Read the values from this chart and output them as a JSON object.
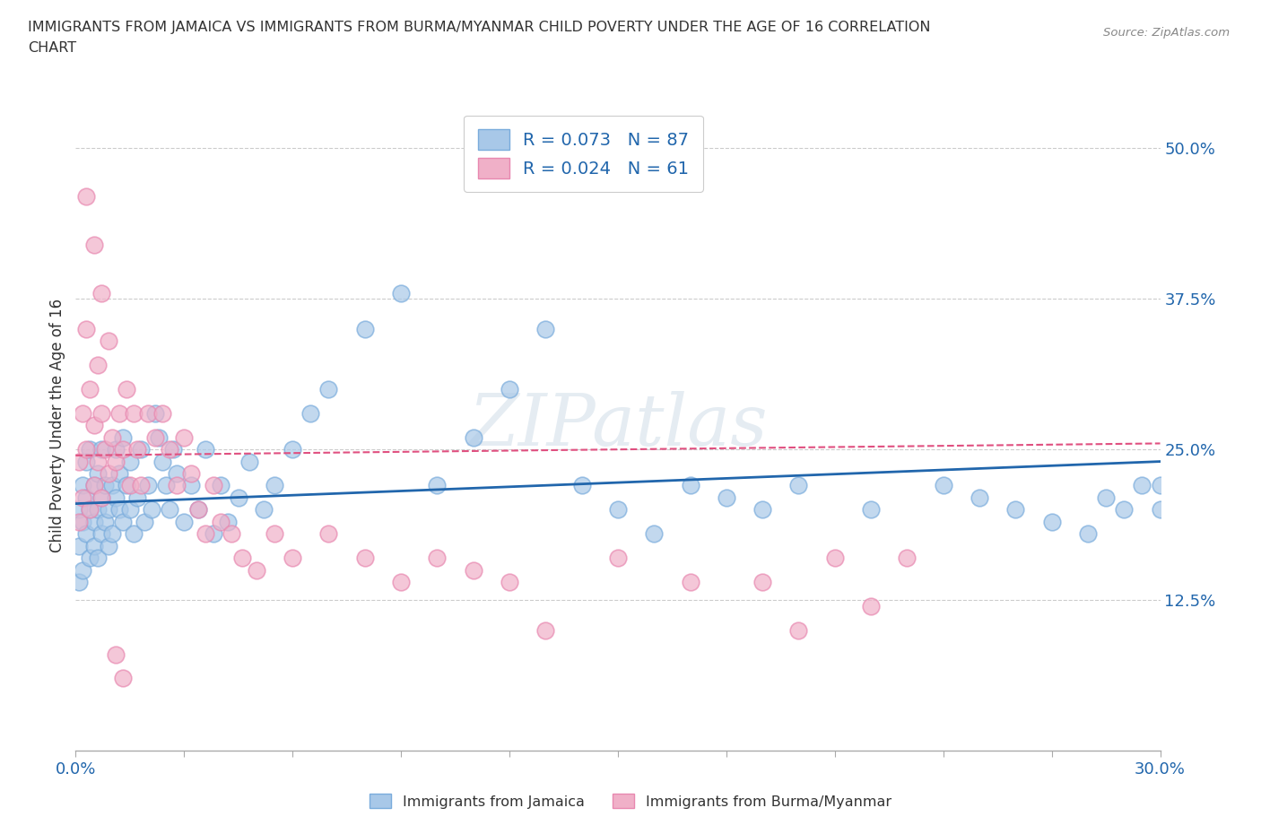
{
  "title_line1": "IMMIGRANTS FROM JAMAICA VS IMMIGRANTS FROM BURMA/MYANMAR CHILD POVERTY UNDER THE AGE OF 16 CORRELATION",
  "title_line2": "CHART",
  "source": "Source: ZipAtlas.com",
  "ylabel": "Child Poverty Under the Age of 16",
  "xlim": [
    0.0,
    0.3
  ],
  "ylim": [
    0.0,
    0.54
  ],
  "yticks": [
    0.0,
    0.125,
    0.25,
    0.375,
    0.5
  ],
  "ytick_labels": [
    "",
    "12.5%",
    "25.0%",
    "37.5%",
    "50.0%"
  ],
  "xticks": [
    0.0,
    0.03,
    0.06,
    0.09,
    0.12,
    0.15,
    0.18,
    0.21,
    0.24,
    0.27,
    0.3
  ],
  "hlines": [
    0.125,
    0.25,
    0.375,
    0.5
  ],
  "jamaica_color": "#a8c8e8",
  "burma_color": "#f0b0c8",
  "jamaica_edge_color": "#7aacdc",
  "burma_edge_color": "#e888b0",
  "jamaica_line_color": "#2166ac",
  "burma_line_color": "#e05080",
  "R_jamaica": 0.073,
  "N_jamaica": 87,
  "R_burma": 0.024,
  "N_burma": 61,
  "legend_label_jamaica": "Immigrants from Jamaica",
  "legend_label_burma": "Immigrants from Burma/Myanmar",
  "watermark": "ZIPatlas",
  "background_color": "#ffffff",
  "jamaica_x": [
    0.001,
    0.001,
    0.001,
    0.002,
    0.002,
    0.002,
    0.003,
    0.003,
    0.003,
    0.004,
    0.004,
    0.004,
    0.005,
    0.005,
    0.005,
    0.006,
    0.006,
    0.006,
    0.007,
    0.007,
    0.007,
    0.008,
    0.008,
    0.009,
    0.009,
    0.01,
    0.01,
    0.011,
    0.011,
    0.012,
    0.012,
    0.013,
    0.013,
    0.014,
    0.015,
    0.015,
    0.016,
    0.017,
    0.018,
    0.019,
    0.02,
    0.021,
    0.022,
    0.023,
    0.024,
    0.025,
    0.026,
    0.027,
    0.028,
    0.03,
    0.032,
    0.034,
    0.036,
    0.038,
    0.04,
    0.042,
    0.045,
    0.048,
    0.052,
    0.055,
    0.06,
    0.065,
    0.07,
    0.08,
    0.09,
    0.1,
    0.11,
    0.12,
    0.13,
    0.14,
    0.15,
    0.16,
    0.17,
    0.18,
    0.19,
    0.2,
    0.22,
    0.24,
    0.25,
    0.26,
    0.27,
    0.28,
    0.285,
    0.29,
    0.295,
    0.3,
    0.3
  ],
  "jamaica_y": [
    0.2,
    0.17,
    0.14,
    0.22,
    0.19,
    0.15,
    0.21,
    0.18,
    0.24,
    0.2,
    0.16,
    0.25,
    0.19,
    0.22,
    0.17,
    0.2,
    0.23,
    0.16,
    0.21,
    0.18,
    0.25,
    0.19,
    0.22,
    0.2,
    0.17,
    0.22,
    0.18,
    0.21,
    0.25,
    0.2,
    0.23,
    0.19,
    0.26,
    0.22,
    0.2,
    0.24,
    0.18,
    0.21,
    0.25,
    0.19,
    0.22,
    0.2,
    0.28,
    0.26,
    0.24,
    0.22,
    0.2,
    0.25,
    0.23,
    0.19,
    0.22,
    0.2,
    0.25,
    0.18,
    0.22,
    0.19,
    0.21,
    0.24,
    0.2,
    0.22,
    0.25,
    0.28,
    0.3,
    0.35,
    0.38,
    0.22,
    0.26,
    0.3,
    0.35,
    0.22,
    0.2,
    0.18,
    0.22,
    0.21,
    0.2,
    0.22,
    0.2,
    0.22,
    0.21,
    0.2,
    0.19,
    0.18,
    0.21,
    0.2,
    0.22,
    0.22,
    0.2
  ],
  "burma_x": [
    0.001,
    0.001,
    0.002,
    0.002,
    0.003,
    0.003,
    0.004,
    0.004,
    0.005,
    0.005,
    0.006,
    0.006,
    0.007,
    0.007,
    0.008,
    0.009,
    0.01,
    0.011,
    0.012,
    0.013,
    0.014,
    0.015,
    0.016,
    0.017,
    0.018,
    0.02,
    0.022,
    0.024,
    0.026,
    0.028,
    0.03,
    0.032,
    0.034,
    0.036,
    0.038,
    0.04,
    0.043,
    0.046,
    0.05,
    0.055,
    0.06,
    0.07,
    0.08,
    0.09,
    0.1,
    0.11,
    0.12,
    0.13,
    0.15,
    0.17,
    0.19,
    0.2,
    0.21,
    0.22,
    0.23,
    0.003,
    0.005,
    0.007,
    0.009,
    0.011,
    0.013
  ],
  "burma_y": [
    0.24,
    0.19,
    0.28,
    0.21,
    0.35,
    0.25,
    0.3,
    0.2,
    0.27,
    0.22,
    0.32,
    0.24,
    0.28,
    0.21,
    0.25,
    0.23,
    0.26,
    0.24,
    0.28,
    0.25,
    0.3,
    0.22,
    0.28,
    0.25,
    0.22,
    0.28,
    0.26,
    0.28,
    0.25,
    0.22,
    0.26,
    0.23,
    0.2,
    0.18,
    0.22,
    0.19,
    0.18,
    0.16,
    0.15,
    0.18,
    0.16,
    0.18,
    0.16,
    0.14,
    0.16,
    0.15,
    0.14,
    0.1,
    0.16,
    0.14,
    0.14,
    0.1,
    0.16,
    0.12,
    0.16,
    0.46,
    0.42,
    0.38,
    0.34,
    0.08,
    0.06
  ]
}
